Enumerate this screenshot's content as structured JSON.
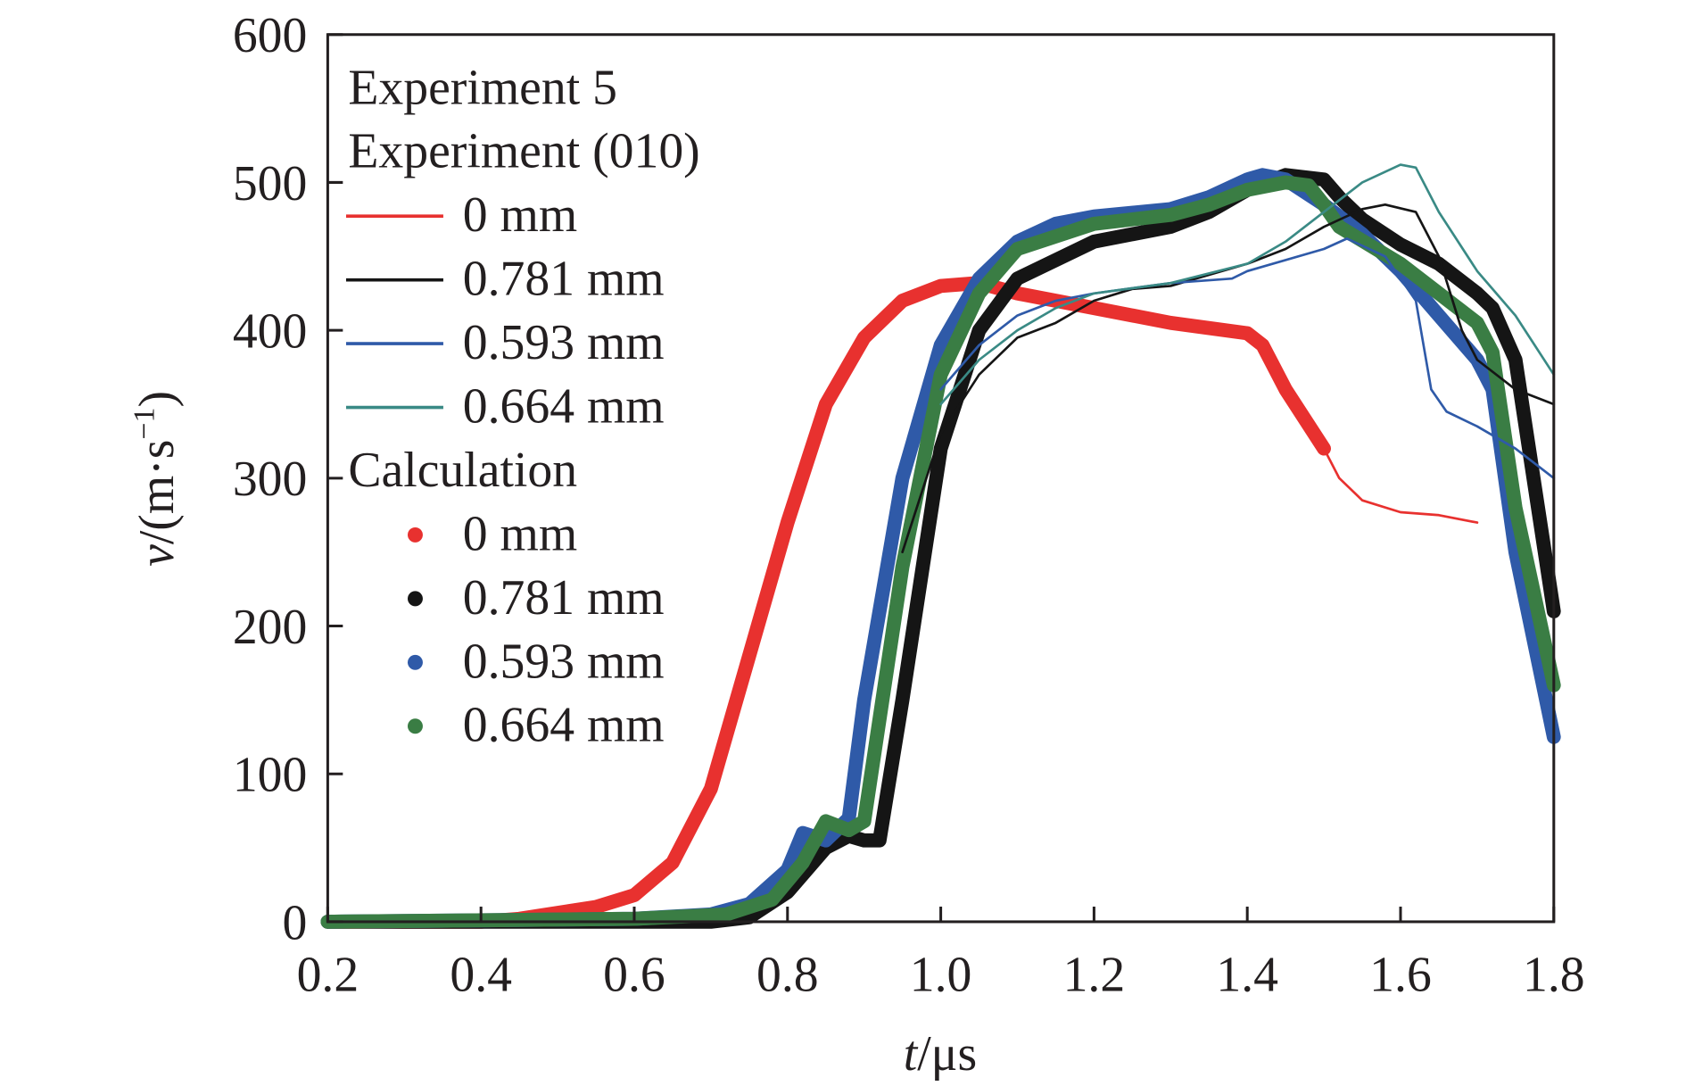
{
  "chart_data": {
    "type": "line",
    "xlabel_italic": "t",
    "xlabel_rest": "/μs",
    "ylabel_italic": "v",
    "ylabel_rest": "/(m·s",
    "ylabel_sup": "−1",
    "ylabel_close": ")",
    "xlim": [
      0.2,
      1.8
    ],
    "ylim": [
      0,
      600
    ],
    "xticks": [
      "0.2",
      "0.4",
      "0.6",
      "0.8",
      "1.0",
      "1.2",
      "1.4",
      "1.6",
      "1.8"
    ],
    "yticks": [
      "0",
      "100",
      "200",
      "300",
      "400",
      "500",
      "600"
    ],
    "grid": false,
    "legend_placement": "top-left",
    "legend": {
      "title1": "Experiment 5",
      "title2": "Experiment (010)",
      "title3": "Calculation"
    },
    "series": [
      {
        "name": "0 mm",
        "group": "Calculation",
        "color": "#e8312f",
        "x": [
          0.2,
          0.4,
          0.45,
          0.5,
          0.55,
          0.6,
          0.65,
          0.7,
          0.75,
          0.8,
          0.85,
          0.9,
          0.95,
          1.0,
          1.05,
          1.1,
          1.2,
          1.3,
          1.4,
          1.42,
          1.45,
          1.5
        ],
        "y": [
          0,
          0,
          2,
          6,
          10,
          18,
          40,
          90,
          180,
          270,
          350,
          395,
          420,
          430,
          432,
          425,
          415,
          405,
          398,
          390,
          360,
          320
        ]
      },
      {
        "name": "0.781 mm",
        "group": "Calculation",
        "color": "#151515",
        "x": [
          0.2,
          0.7,
          0.75,
          0.8,
          0.85,
          0.88,
          0.9,
          0.92,
          0.95,
          1.0,
          1.05,
          1.1,
          1.2,
          1.3,
          1.35,
          1.4,
          1.45,
          1.5,
          1.52,
          1.55,
          1.6,
          1.65,
          1.7,
          1.72,
          1.75,
          1.8
        ],
        "y": [
          0,
          0,
          3,
          20,
          50,
          58,
          55,
          55,
          150,
          320,
          400,
          435,
          460,
          470,
          480,
          495,
          505,
          502,
          490,
          475,
          458,
          445,
          425,
          415,
          380,
          210
        ]
      },
      {
        "name": "0.593 mm",
        "group": "Calculation",
        "color": "#2f5aa8",
        "x": [
          0.2,
          0.6,
          0.7,
          0.75,
          0.8,
          0.82,
          0.85,
          0.88,
          0.9,
          0.95,
          1.0,
          1.05,
          1.1,
          1.15,
          1.2,
          1.3,
          1.35,
          1.4,
          1.42,
          1.45,
          1.5,
          1.55,
          1.6,
          1.65,
          1.7,
          1.72,
          1.75,
          1.8
        ],
        "y": [
          0,
          2,
          5,
          12,
          35,
          60,
          55,
          70,
          150,
          300,
          390,
          435,
          460,
          472,
          477,
          482,
          490,
          502,
          505,
          502,
          485,
          465,
          440,
          410,
          380,
          360,
          250,
          125
        ]
      },
      {
        "name": "0.664 mm",
        "group": "Calculation",
        "color": "#3a7d44",
        "x": [
          0.2,
          0.6,
          0.72,
          0.78,
          0.82,
          0.85,
          0.88,
          0.9,
          0.95,
          1.0,
          1.05,
          1.1,
          1.2,
          1.3,
          1.35,
          1.4,
          1.45,
          1.48,
          1.5,
          1.52,
          1.6,
          1.7,
          1.72,
          1.75,
          1.8
        ],
        "y": [
          0,
          2,
          5,
          15,
          40,
          68,
          62,
          68,
          240,
          370,
          425,
          455,
          472,
          478,
          485,
          495,
          500,
          498,
          485,
          470,
          445,
          405,
          385,
          280,
          160
        ]
      },
      {
        "name": "0 mm",
        "group": "Experiment (010)",
        "color": "#e8312f",
        "x": [
          1.5,
          1.52,
          1.55,
          1.6,
          1.65,
          1.7
        ],
        "y": [
          320,
          300,
          285,
          277,
          275,
          270
        ]
      },
      {
        "name": "0.781 mm",
        "group": "Experiment (010)",
        "color": "#151515",
        "x": [
          0.95,
          1.0,
          1.05,
          1.1,
          1.15,
          1.2,
          1.25,
          1.3,
          1.4,
          1.45,
          1.5,
          1.55,
          1.58,
          1.62,
          1.65,
          1.68,
          1.7,
          1.75,
          1.8
        ],
        "y": [
          250,
          330,
          370,
          395,
          405,
          420,
          428,
          430,
          445,
          455,
          470,
          482,
          485,
          480,
          450,
          400,
          380,
          360,
          350
        ]
      },
      {
        "name": "0.593 mm",
        "group": "Experiment (010)",
        "color": "#2f5aa8",
        "x": [
          1.0,
          1.05,
          1.1,
          1.15,
          1.2,
          1.3,
          1.38,
          1.4,
          1.5,
          1.53,
          1.58,
          1.62,
          1.64,
          1.66,
          1.7,
          1.75,
          1.8
        ],
        "y": [
          360,
          390,
          410,
          420,
          425,
          432,
          435,
          440,
          455,
          462,
          450,
          420,
          360,
          345,
          335,
          320,
          300
        ]
      },
      {
        "name": "0.664 mm",
        "group": "Experiment (010)",
        "color": "#3a8a85",
        "x": [
          1.0,
          1.05,
          1.1,
          1.15,
          1.2,
          1.3,
          1.4,
          1.45,
          1.5,
          1.55,
          1.6,
          1.62,
          1.65,
          1.7,
          1.75,
          1.8
        ],
        "y": [
          350,
          380,
          400,
          415,
          425,
          432,
          445,
          460,
          480,
          500,
          512,
          510,
          480,
          440,
          410,
          370
        ]
      }
    ]
  }
}
